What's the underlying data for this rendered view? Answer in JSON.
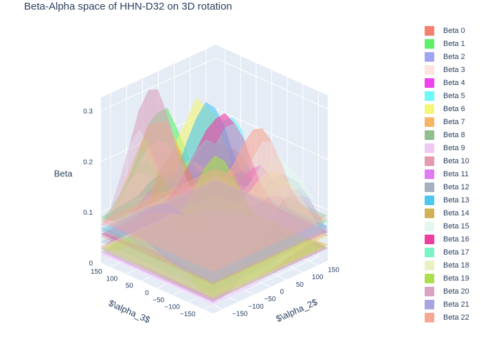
{
  "chart_data": {
    "type": "surface3d",
    "title": "Beta-Alpha space of HHN-D32 on 3D rotation",
    "x_axis_label": "$\\alpha_2$",
    "y_axis_label": "$\\alpha_3$",
    "z_axis_label": "Beta",
    "x_ticks": [
      "−150",
      "−100",
      "−50",
      "0",
      "50",
      "100",
      "150"
    ],
    "y_ticks": [
      "−150",
      "−100",
      "−50",
      "0",
      "50",
      "100",
      "150"
    ],
    "z_ticks": [
      "0",
      "0.1",
      "0.2",
      "0.3"
    ],
    "x_range": [
      -180,
      180
    ],
    "y_range": [
      -180,
      180
    ],
    "z_range": [
      0,
      0.32
    ],
    "legend_position": "right",
    "series": [
      {
        "name": "Beta 0",
        "color": "#f4806f"
      },
      {
        "name": "Beta 1",
        "color": "#5ff06a"
      },
      {
        "name": "Beta 2",
        "color": "#a3a3f5"
      },
      {
        "name": "Beta 3",
        "color": "#fde4de"
      },
      {
        "name": "Beta 4",
        "color": "#ee44ee"
      },
      {
        "name": "Beta 5",
        "color": "#6ef8f8"
      },
      {
        "name": "Beta 6",
        "color": "#f5f57a"
      },
      {
        "name": "Beta 7",
        "color": "#f7b566"
      },
      {
        "name": "Beta 8",
        "color": "#8fbf8f"
      },
      {
        "name": "Beta 9",
        "color": "#f1c9f5"
      },
      {
        "name": "Beta 10",
        "color": "#e49aaf"
      },
      {
        "name": "Beta 11",
        "color": "#e07cf2"
      },
      {
        "name": "Beta 12",
        "color": "#a4b0c0"
      },
      {
        "name": "Beta 13",
        "color": "#4ec7ee"
      },
      {
        "name": "Beta 14",
        "color": "#d1b256"
      },
      {
        "name": "Beta 15",
        "color": "#e4f8ef"
      },
      {
        "name": "Beta 16",
        "color": "#ef3ea1"
      },
      {
        "name": "Beta 17",
        "color": "#79f5c8"
      },
      {
        "name": "Beta 18",
        "color": "#ebf0c3"
      },
      {
        "name": "Beta 19",
        "color": "#abdf4e"
      },
      {
        "name": "Beta 20",
        "color": "#d9a3c1"
      },
      {
        "name": "Beta 21",
        "color": "#a7a4e0"
      },
      {
        "name": "Beta 22",
        "color": "#f7a895"
      }
    ]
  }
}
